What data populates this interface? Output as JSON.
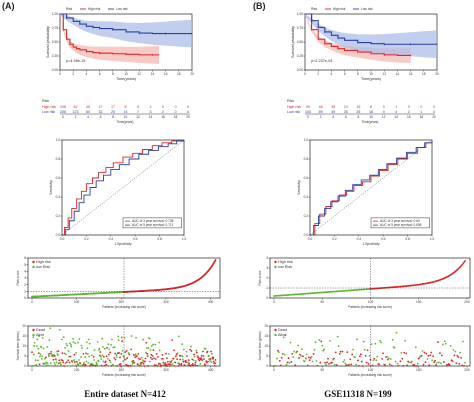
{
  "captions": {
    "left_letter": "(A)",
    "right_letter": "(B)",
    "left_caption": "Entire dataset   N=412",
    "right_caption": "GSE11318   N=199"
  },
  "colors": {
    "high": "#d62728",
    "low": "#2c3e9e",
    "green": "#5cb82e",
    "band_high": "#f6b8b3",
    "band_low": "#aebde8",
    "grey": "#888888"
  },
  "chart_data": [
    {
      "id": "km_A",
      "type": "line",
      "ylabel": "Survival probability",
      "xlabel": "Time(years)",
      "legend": [
        "Risk",
        "High risk",
        "Low risk"
      ],
      "pvalue": "p=4.98e-15",
      "xlim": [
        0,
        20
      ],
      "ylim": [
        0,
        1
      ],
      "xticks": [
        "0",
        "2",
        "4",
        "6",
        "8",
        "10",
        "12",
        "14",
        "16",
        "18",
        "20"
      ],
      "yticks": [
        "0.00",
        "0.25",
        "0.50",
        "0.75",
        "1.00"
      ],
      "series": [
        {
          "name": "High risk",
          "x": [
            0,
            0.5,
            1,
            1.5,
            2,
            2.5,
            3,
            4,
            5,
            6,
            8,
            10,
            12,
            14,
            15
          ],
          "y": [
            1,
            0.72,
            0.55,
            0.46,
            0.41,
            0.38,
            0.36,
            0.33,
            0.31,
            0.3,
            0.29,
            0.28,
            0.27,
            0.27,
            0.27
          ]
        },
        {
          "name": "Low risk",
          "x": [
            0,
            1,
            2,
            3,
            4,
            5,
            6,
            8,
            10,
            12,
            14,
            16,
            18,
            20
          ],
          "y": [
            1,
            0.93,
            0.87,
            0.82,
            0.78,
            0.76,
            0.74,
            0.72,
            0.68,
            0.66,
            0.65,
            0.65,
            0.65,
            0.65
          ]
        }
      ]
    },
    {
      "id": "km_B",
      "type": "line",
      "ylabel": "Survival probability",
      "xlabel": "Time(years)",
      "legend": [
        "Risk",
        "High risk",
        "Low risk"
      ],
      "pvalue": "p=2.237e-04",
      "xlim": [
        0,
        20
      ],
      "ylim": [
        0,
        1
      ],
      "xticks": [
        "0",
        "2",
        "4",
        "6",
        "8",
        "10",
        "12",
        "14",
        "16",
        "18",
        "20"
      ],
      "yticks": [
        "0.00",
        "0.25",
        "0.50",
        "0.75",
        "1.00"
      ],
      "series": [
        {
          "name": "High risk",
          "x": [
            0,
            1,
            2,
            3,
            4,
            5,
            6,
            8,
            10,
            12,
            14,
            16
          ],
          "y": [
            1,
            0.72,
            0.55,
            0.47,
            0.42,
            0.38,
            0.35,
            0.32,
            0.29,
            0.27,
            0.26,
            0.26
          ]
        },
        {
          "name": "Low risk",
          "x": [
            0,
            1,
            2,
            3,
            4,
            5,
            6,
            8,
            10,
            12,
            14,
            16,
            18,
            20
          ],
          "y": [
            1,
            0.88,
            0.76,
            0.68,
            0.62,
            0.57,
            0.53,
            0.49,
            0.47,
            0.46,
            0.46,
            0.46,
            0.46,
            0.46
          ]
        }
      ]
    },
    {
      "id": "risk_table_A",
      "type": "table",
      "title": "Risk",
      "columns": [
        "0",
        "2",
        "4",
        "6",
        "8",
        "10",
        "12",
        "14",
        "16",
        "18",
        "20"
      ],
      "rows": [
        {
          "name": "High risk",
          "values": [
            "206",
            "82",
            "40",
            "27",
            "17",
            "8",
            "5",
            "2",
            "0",
            "0",
            "0"
          ]
        },
        {
          "name": "Low risk",
          "values": [
            "206",
            "123",
            "60",
            "32",
            "20",
            "14",
            "7",
            "3",
            "2",
            "0",
            "0"
          ]
        }
      ]
    },
    {
      "id": "risk_table_B",
      "type": "table",
      "title": "Risk",
      "columns": [
        "0",
        "2",
        "4",
        "6",
        "8",
        "10",
        "12",
        "14",
        "16",
        "18",
        "20"
      ],
      "rows": [
        {
          "name": "High risk",
          "values": [
            "99",
            "48",
            "39",
            "24",
            "15",
            "8",
            "3",
            "1",
            "0",
            "0",
            "0"
          ]
        },
        {
          "name": "Low risk",
          "values": [
            "100",
            "69",
            "49",
            "35",
            "26",
            "18",
            "9",
            "4",
            "2",
            "1",
            "0"
          ]
        }
      ]
    },
    {
      "id": "roc_A",
      "type": "line",
      "xlabel": "1-Specificity",
      "ylabel": "Sensitivity",
      "xlim": [
        0,
        1
      ],
      "ylim": [
        0,
        1
      ],
      "ticks": [
        "0.0",
        "0.2",
        "0.4",
        "0.6",
        "0.8",
        "1.0"
      ],
      "legend": [
        "AUC of 3 year survival: 0.735",
        "AUC of 5 year survival: 0.711"
      ],
      "series": [
        {
          "name": "AUC of 3 year survival: 0.735",
          "x": [
            0,
            0.02,
            0.05,
            0.08,
            0.12,
            0.16,
            0.2,
            0.25,
            0.3,
            0.36,
            0.42,
            0.5,
            0.58,
            0.66,
            0.74,
            0.82,
            0.9,
            1
          ],
          "y": [
            0,
            0.08,
            0.18,
            0.28,
            0.38,
            0.46,
            0.54,
            0.6,
            0.66,
            0.71,
            0.76,
            0.82,
            0.86,
            0.9,
            0.94,
            0.97,
            0.99,
            1
          ]
        },
        {
          "name": "AUC of 5 year survival: 0.711",
          "x": [
            0,
            0.03,
            0.06,
            0.1,
            0.14,
            0.18,
            0.23,
            0.28,
            0.34,
            0.4,
            0.47,
            0.55,
            0.63,
            0.71,
            0.79,
            0.87,
            0.94,
            1
          ],
          "y": [
            0,
            0.06,
            0.15,
            0.25,
            0.34,
            0.42,
            0.5,
            0.57,
            0.63,
            0.69,
            0.74,
            0.8,
            0.85,
            0.89,
            0.93,
            0.96,
            0.99,
            1
          ]
        }
      ]
    },
    {
      "id": "roc_B",
      "type": "line",
      "xlabel": "1-Specificity",
      "ylabel": "Sensitivity",
      "xlim": [
        0,
        1
      ],
      "ylim": [
        0,
        1
      ],
      "ticks": [
        "0.0",
        "0.2",
        "0.4",
        "0.6",
        "0.8",
        "1.0"
      ],
      "legend": [
        "AUC of 3 year survival: 0.60",
        "AUC of 5 year survival: 0.608"
      ],
      "series": [
        {
          "name": "AUC of 3 year survival: 0.60",
          "x": [
            0,
            0.04,
            0.08,
            0.13,
            0.18,
            0.24,
            0.3,
            0.36,
            0.43,
            0.5,
            0.57,
            0.64,
            0.72,
            0.8,
            0.88,
            0.95,
            1
          ],
          "y": [
            0,
            0.12,
            0.22,
            0.3,
            0.36,
            0.42,
            0.46,
            0.52,
            0.56,
            0.62,
            0.68,
            0.74,
            0.8,
            0.86,
            0.92,
            0.97,
            1
          ]
        },
        {
          "name": "AUC of 5 year survival: 0.608",
          "x": [
            0,
            0.03,
            0.07,
            0.12,
            0.17,
            0.23,
            0.29,
            0.35,
            0.42,
            0.49,
            0.56,
            0.63,
            0.71,
            0.79,
            0.87,
            0.94,
            1
          ],
          "y": [
            0,
            0.1,
            0.2,
            0.28,
            0.35,
            0.41,
            0.47,
            0.53,
            0.58,
            0.63,
            0.69,
            0.75,
            0.81,
            0.87,
            0.92,
            0.97,
            1
          ]
        }
      ]
    },
    {
      "id": "riskscore_A",
      "type": "scatter",
      "xlabel": "Patients (increasing risk score)",
      "ylabel": "Risk score",
      "legend": [
        "High risk",
        "low Risk"
      ],
      "n": 412,
      "cutoff_index": 206,
      "cutoff_value": 1.0,
      "ylim": [
        0,
        6
      ],
      "yticks": [
        "0",
        "1",
        "2",
        "3",
        "4",
        "5",
        "6"
      ],
      "xticks": [
        "0",
        "100",
        "200",
        "300",
        "400"
      ]
    },
    {
      "id": "riskscore_B",
      "type": "scatter",
      "xlabel": "Patients (increasing risk score)",
      "ylabel": "Risk score",
      "legend": [
        "High risk",
        "low Risk"
      ],
      "n": 199,
      "cutoff_index": 100,
      "cutoff_value": 1.0,
      "ylim": [
        0,
        4
      ],
      "yticks": [
        "0",
        "1",
        "2",
        "3",
        "4"
      ],
      "xticks": [
        "0",
        "50",
        "100",
        "150",
        "200"
      ]
    },
    {
      "id": "survstatus_A",
      "type": "scatter",
      "xlabel": "Patients (increasing risk score)",
      "ylabel": "Survival time (years)",
      "legend": [
        "Dead",
        "Alive"
      ],
      "n": 412,
      "cutoff_index": 206,
      "ylim": [
        0,
        20
      ],
      "yticks": [
        "0",
        "5",
        "10",
        "15",
        "20"
      ],
      "xticks": [
        "0",
        "100",
        "200",
        "300",
        "400"
      ]
    },
    {
      "id": "survstatus_B",
      "type": "scatter",
      "xlabel": "Patients (increasing risk score)",
      "ylabel": "Survival time (years)",
      "legend": [
        "Dead",
        "Alive"
      ],
      "n": 199,
      "cutoff_index": 100,
      "ylim": [
        0,
        20
      ],
      "yticks": [
        "0",
        "5",
        "10",
        "15",
        "20"
      ],
      "xticks": [
        "0",
        "50",
        "100",
        "150",
        "200"
      ]
    }
  ]
}
